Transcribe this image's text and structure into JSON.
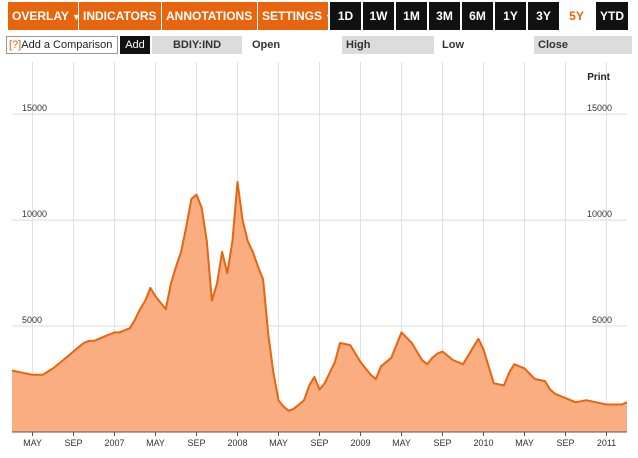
{
  "toolbar": {
    "menus": [
      {
        "label": "OVERLAY"
      },
      {
        "label": "INDICATORS"
      },
      {
        "label": "ANNOTATIONS"
      },
      {
        "label": "SETTINGS"
      }
    ],
    "ranges": [
      {
        "label": "1D"
      },
      {
        "label": "1W"
      },
      {
        "label": "1M"
      },
      {
        "label": "3M"
      },
      {
        "label": "6M"
      },
      {
        "label": "1Y"
      },
      {
        "label": "3Y"
      },
      {
        "label": "5Y",
        "active": true
      },
      {
        "label": "YTD"
      }
    ],
    "menu_arrow": "▼"
  },
  "compare": {
    "help": "[?]",
    "label": "Add a Comparison",
    "add_label": "Add"
  },
  "quote": {
    "ticker": "BDIY:IND",
    "open_label": "Open",
    "high_label": "High",
    "low_label": "Low",
    "close_label": "Close"
  },
  "print_label": "Print",
  "colors": {
    "accent": "#e8650f",
    "area_fill": "#f9ad80",
    "line": "#e8650f",
    "dark_button": "#111111"
  },
  "chart_data": {
    "type": "area",
    "ylim": [
      0,
      16800
    ],
    "yticks": [
      5000,
      10000,
      15000
    ],
    "xtick_labels": [
      "MAY",
      "SEP",
      "2007",
      "MAY",
      "SEP",
      "2008",
      "MAY",
      "SEP",
      "2009",
      "MAY",
      "SEP",
      "2010",
      "MAY",
      "SEP",
      "2011"
    ],
    "grid": true,
    "series": [
      {
        "x": [
          0,
          1,
          2,
          3,
          4,
          5,
          6,
          6.5,
          7,
          7.5,
          8,
          8.5,
          9,
          9.5,
          10,
          10.5,
          11,
          11.5,
          12,
          12.5,
          13,
          13.5,
          14,
          15,
          15.5,
          16,
          16.5,
          17,
          17.5,
          18,
          18.5,
          19,
          19.5,
          20,
          20.5,
          21,
          21.5,
          22,
          22.5,
          23,
          23.5,
          24,
          24.5,
          25,
          25.5,
          26,
          26.5,
          27,
          27.5,
          28,
          28.5,
          29,
          29.5,
          30,
          30.5,
          31,
          31.5,
          32,
          33,
          34,
          35,
          35.5,
          36,
          37,
          38,
          39,
          40,
          40.5,
          41,
          41.5,
          42,
          43,
          44,
          45,
          45.5,
          46,
          47,
          48,
          48.5,
          49,
          50,
          51,
          52,
          52.5,
          53,
          54,
          55,
          56,
          57,
          58,
          59,
          59.5,
          60
        ],
        "y": [
          2900,
          2800,
          2700,
          2700,
          3000,
          3400,
          3800,
          4000,
          4200,
          4300,
          4300,
          4400,
          4500,
          4600,
          4700,
          4700,
          4800,
          4900,
          5300,
          5800,
          6200,
          6800,
          6400,
          5800,
          7000,
          7800,
          8500,
          9700,
          11000,
          11200,
          10600,
          9000,
          6200,
          7000,
          8500,
          7500,
          9000,
          11800,
          10000,
          9000,
          8500,
          7800,
          7200,
          4600,
          2800,
          1500,
          1200,
          1000,
          1100,
          1300,
          1500,
          2200,
          2600,
          2000,
          2300,
          2800,
          3300,
          4200,
          4100,
          3300,
          2700,
          2500,
          3100,
          3500,
          4700,
          4200,
          3400,
          3200,
          3500,
          3700,
          3800,
          3400,
          3200,
          4000,
          4400,
          3900,
          2300,
          2200,
          2800,
          3200,
          3000,
          2500,
          2400,
          2000,
          1800,
          1600,
          1400,
          1500,
          1400,
          1300,
          1300,
          1300,
          1400
        ]
      }
    ],
    "x_domain": [
      0,
      60
    ],
    "xtick_positions": [
      2,
      6,
      10,
      14,
      18,
      22,
      26,
      30,
      34,
      38,
      42,
      46,
      50,
      54,
      58
    ]
  }
}
